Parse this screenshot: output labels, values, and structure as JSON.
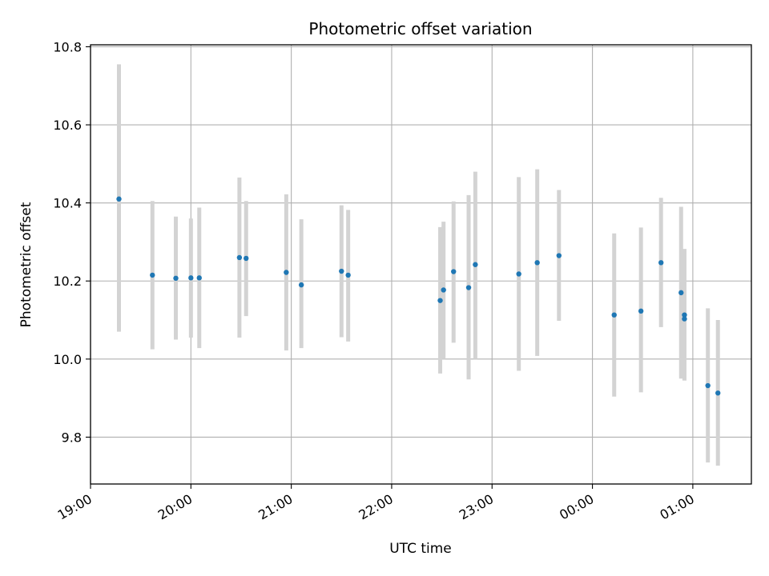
{
  "chart_data": {
    "type": "scatter",
    "title": "Photometric offset variation",
    "xlabel": "UTC time",
    "ylabel": "Photometric offset",
    "xlim": [
      "19:00",
      "01:35"
    ],
    "ylim": [
      9.68,
      10.805
    ],
    "x_ticks": [
      "19:00",
      "20:00",
      "21:00",
      "22:00",
      "23:00",
      "00:00",
      "01:00"
    ],
    "y_ticks": [
      9.8,
      10.0,
      10.2,
      10.4,
      10.6,
      10.8
    ],
    "grid": true,
    "series": [
      {
        "marker_color": "#1f77b4",
        "errorbar_color": "#d3d3d3",
        "points": [
          {
            "time": "19:17",
            "y": 10.41,
            "lo": 10.07,
            "hi": 10.755
          },
          {
            "time": "19:37",
            "y": 10.215,
            "lo": 10.025,
            "hi": 10.405
          },
          {
            "time": "19:51",
            "y": 10.207,
            "lo": 10.05,
            "hi": 10.365
          },
          {
            "time": "20:00",
            "y": 10.208,
            "lo": 10.055,
            "hi": 10.36
          },
          {
            "time": "20:05",
            "y": 10.208,
            "lo": 10.028,
            "hi": 10.388
          },
          {
            "time": "20:29",
            "y": 10.26,
            "lo": 10.055,
            "hi": 10.465
          },
          {
            "time": "20:33",
            "y": 10.258,
            "lo": 10.11,
            "hi": 10.405
          },
          {
            "time": "20:57",
            "y": 10.222,
            "lo": 10.022,
            "hi": 10.422
          },
          {
            "time": "21:06",
            "y": 10.19,
            "lo": 10.028,
            "hi": 10.358
          },
          {
            "time": "21:30",
            "y": 10.225,
            "lo": 10.056,
            "hi": 10.394
          },
          {
            "time": "21:34",
            "y": 10.215,
            "lo": 10.045,
            "hi": 10.382
          },
          {
            "time": "22:29",
            "y": 10.15,
            "lo": 9.963,
            "hi": 10.338
          },
          {
            "time": "22:31",
            "y": 10.177,
            "lo": 10.0,
            "hi": 10.352
          },
          {
            "time": "22:37",
            "y": 10.224,
            "lo": 10.042,
            "hi": 10.404
          },
          {
            "time": "22:46",
            "y": 10.183,
            "lo": 9.948,
            "hi": 10.42
          },
          {
            "time": "22:50",
            "y": 10.242,
            "lo": 10.0,
            "hi": 10.48
          },
          {
            "time": "23:16",
            "y": 10.218,
            "lo": 9.97,
            "hi": 10.466
          },
          {
            "time": "23:27",
            "y": 10.247,
            "lo": 10.008,
            "hi": 10.486
          },
          {
            "time": "23:40",
            "y": 10.265,
            "lo": 10.098,
            "hi": 10.433
          },
          {
            "time": "00:13",
            "y": 10.113,
            "lo": 9.904,
            "hi": 10.322
          },
          {
            "time": "00:29",
            "y": 10.123,
            "lo": 9.915,
            "hi": 10.337
          },
          {
            "time": "00:41",
            "y": 10.247,
            "lo": 10.082,
            "hi": 10.413
          },
          {
            "time": "00:53",
            "y": 10.17,
            "lo": 9.95,
            "hi": 10.39
          },
          {
            "time": "00:55",
            "y": 10.103,
            "lo": 9.945,
            "hi": 10.282
          },
          {
            "time": "00:55",
            "y": 10.113,
            "lo": 9.945,
            "hi": 10.282
          },
          {
            "time": "01:09",
            "y": 9.932,
            "lo": 9.735,
            "hi": 10.13
          },
          {
            "time": "01:15",
            "y": 9.913,
            "lo": 9.727,
            "hi": 10.1
          }
        ]
      }
    ]
  }
}
